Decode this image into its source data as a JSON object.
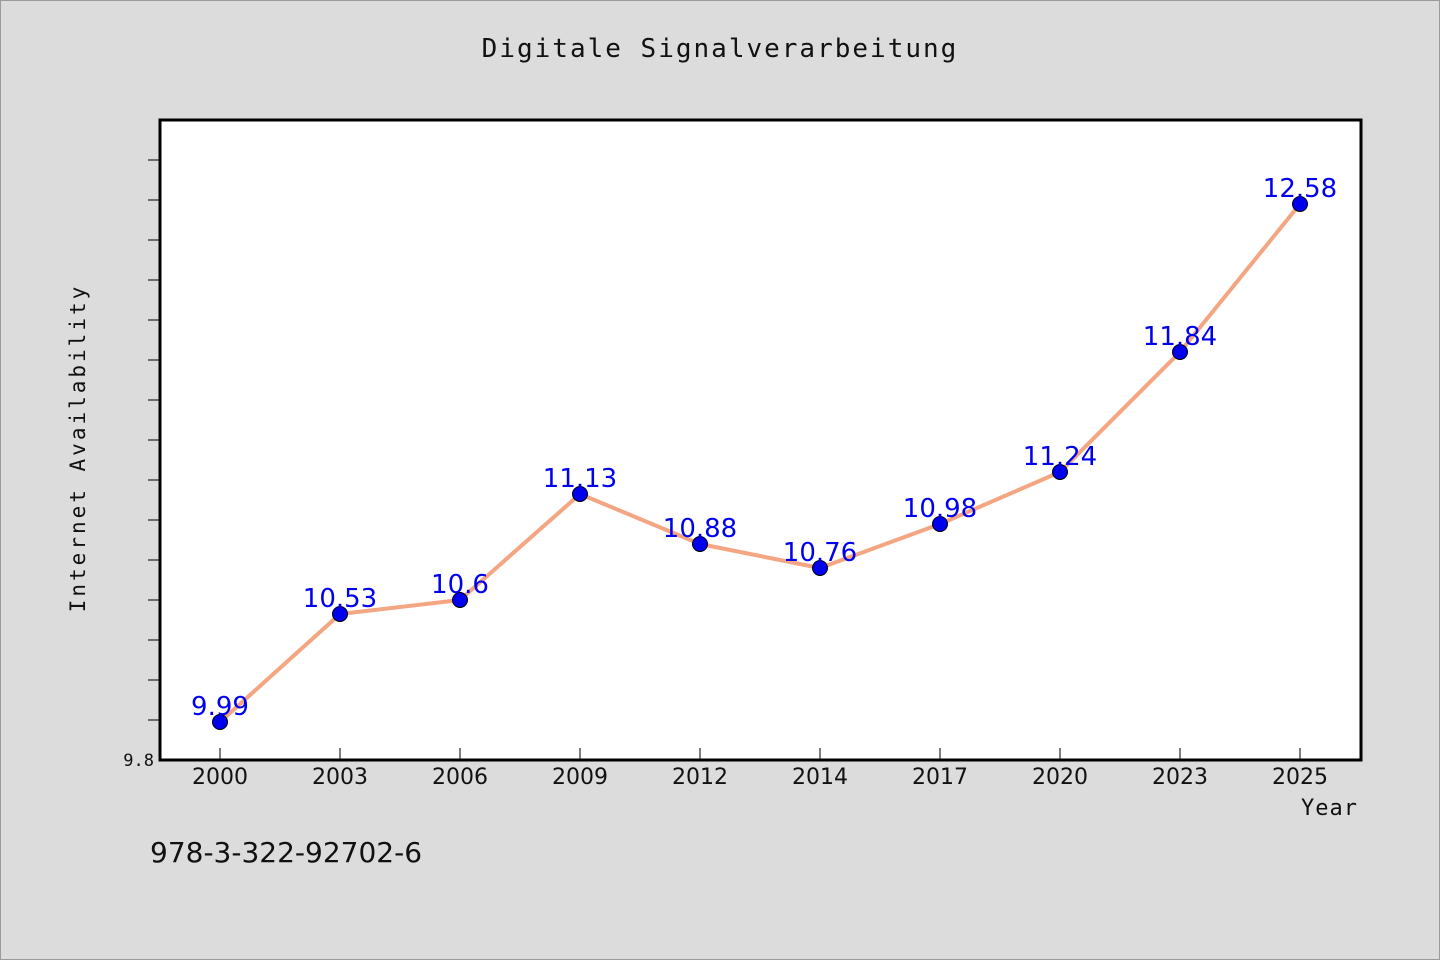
{
  "chart_data": {
    "type": "line",
    "title": "Digitale Signalverarbeitung",
    "xlabel": "Year",
    "ylabel": "Internet Availability",
    "categories": [
      "2000",
      "2003",
      "2006",
      "2009",
      "2012",
      "2014",
      "2017",
      "2020",
      "2023",
      "2025"
    ],
    "series": [
      {
        "values": [
          9.99,
          10.53,
          10.6,
          11.13,
          10.88,
          10.76,
          10.98,
          11.24,
          11.84,
          12.58
        ],
        "labels": [
          "9.99",
          "10.53",
          "10.6",
          "11.13",
          "10.88",
          "10.76",
          "10.98",
          "11.24",
          "11.84",
          "12.58"
        ]
      }
    ],
    "ylim": [
      9.8,
      13.0
    ],
    "y_tick_labels": [
      "9.8"
    ],
    "y_minor_tick_step": 0.2,
    "grid": false,
    "legend": "none",
    "colors": {
      "line": "#f4a582",
      "marker": "#0000ee",
      "label": "#0000ee",
      "plot_bg": "#ffffff",
      "page_bg": "#dcdcdc"
    }
  },
  "footer": {
    "isbn": "978-3-322-92702-6"
  }
}
